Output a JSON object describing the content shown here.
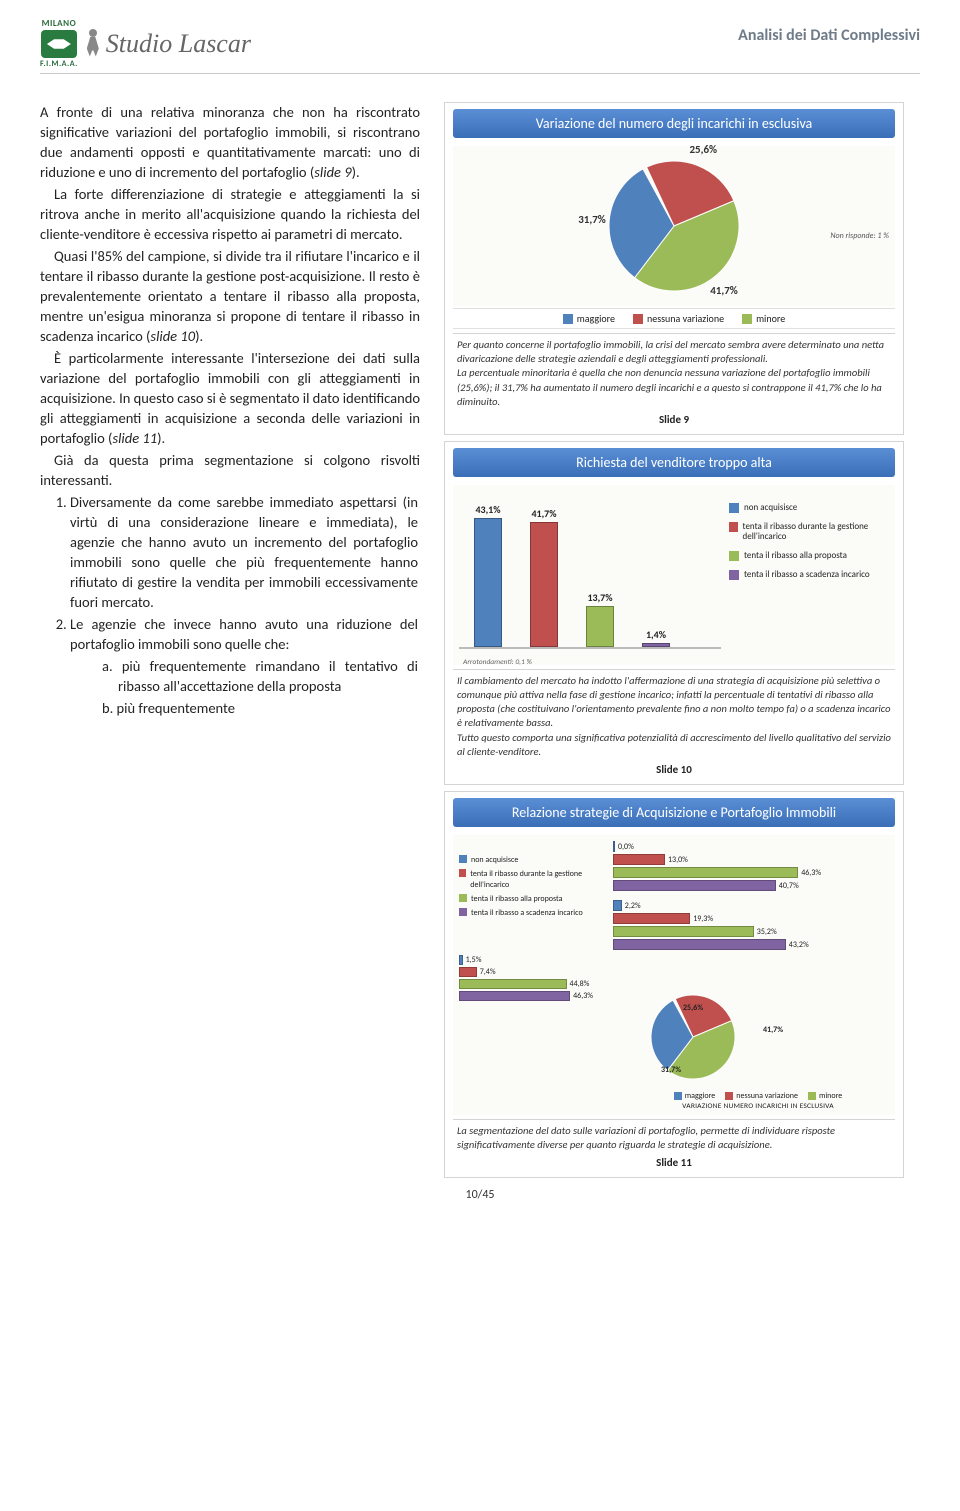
{
  "header": {
    "brand_top": "MILANO",
    "brand_bottom": "F.I.M.A.A.",
    "studio": "Studio Lascar",
    "page_section": "Analisi dei Dati Complessivi"
  },
  "body": {
    "p1": "A fronte di una relativa minoranza che non ha riscontrato significative variazioni del portafoglio immobili, si riscontrano due andamenti opposti e quantitativamente marcati: uno di riduzione e uno di incremento del portafoglio (",
    "p1_em": "slide 9",
    "p1_end": ").",
    "p2": "La forte differenziazione di strategie e atteggiamenti la si ritrova anche in merito all'acquisizione quando la richiesta del cliente-venditore è eccessiva rispetto ai parametri di mercato.",
    "p3": "Quasi l'85% del campione, si divide tra il rifiutare l'incarico e il tentare il ribasso durante la gestione post-acquisizione. Il resto è prevalentemente orientato a tentare il ribasso alla proposta, mentre un'esigua minoranza si propone di tentare il ribasso in scadenza incarico (",
    "p3_em": "slide 10",
    "p3_end": ").",
    "p4": "È particolarmente interessante l'intersezione dei dati sulla variazione del portafoglio immobili con gli atteggiamenti in acquisizione. In questo caso si è segmentato il dato identificando gli atteggiamenti in acquisizione a seconda delle variazioni in portafoglio (",
    "p4_em": "slide 11",
    "p4_end": ").",
    "p5": "Già da questa prima segmentazione si colgono risvolti interessanti.",
    "li1": "Diversamente da come sarebbe immediato aspettarsi (in virtù di una considerazione lineare e immediata), le agenzie che hanno avuto un incremento del portafoglio immobili sono quelle che più frequentemente hanno rifiutato di gestire la vendita per immobili eccessivamente fuori mercato.",
    "li2": "Le agenzie che invece hanno avuto una riduzione del portafoglio immobili sono quelle che:",
    "li2a": "a.  più frequentemente rimandano il tentativo di ribasso all'accettazione della proposta",
    "li2b": "b.  più frequentemente"
  },
  "slide9": {
    "title": "Variazione del numero degli incarichi in esclusiva",
    "caption": "Slide 9",
    "pie": {
      "slices": [
        {
          "label": "25,6%",
          "value": 25.6,
          "color": "#c0504d"
        },
        {
          "label": "41,7%",
          "value": 41.7,
          "color": "#9bbb59"
        },
        {
          "label": "31,7%",
          "value": 31.7,
          "color": "#4f81bd"
        }
      ],
      "note": "Non risponde: 1 %"
    },
    "legend": [
      {
        "color": "#4f81bd",
        "label": "maggiore"
      },
      {
        "color": "#c0504d",
        "label": "nessuna variazione"
      },
      {
        "color": "#9bbb59",
        "label": "minore"
      }
    ],
    "desc": "Per quanto concerne il portafoglio immobili, la crisi del mercato sembra avere determinato una netta divaricazione delle strategie aziendali e degli atteggiamenti professionali.\nLa percentuale minoritaria è quella che non denuncia nessuna variazione del portafoglio immobili (25,6%); il 31,7% ha aumentato il numero degli incarichi  e a questo si contrappone il 41,7% che lo ha diminuito."
  },
  "slide10": {
    "title": "Richiesta del venditore troppo alta",
    "caption": "Slide 10",
    "bars": [
      {
        "label": "43,1%",
        "value": 43.1,
        "color": "#4f81bd"
      },
      {
        "label": "41,7%",
        "value": 41.7,
        "color": "#c0504d"
      },
      {
        "label": "13,7%",
        "value": 13.7,
        "color": "#9bbb59"
      },
      {
        "label": "1,4%",
        "value": 1.4,
        "color": "#8064a2"
      }
    ],
    "ymax": 50,
    "legend": [
      {
        "color": "#4f81bd",
        "label": "non acquisisce"
      },
      {
        "color": "#c0504d",
        "label": "tenta il ribasso durante la gestione dell'incarico"
      },
      {
        "color": "#9bbb59",
        "label": "tenta il ribasso alla proposta"
      },
      {
        "color": "#8064a2",
        "label": "tenta il ribasso a scadenza incarico"
      }
    ],
    "note": "Arrotondamenti: 0,1 %",
    "desc": "Il cambiamento del mercato ha indotto l'affermazione di una strategia di acquisizione più selettiva o comunque più attiva nella fase di gestione incarico; infatti la percentuale di tentativi di ribasso alla proposta (che costituivano l'orientamento prevalente fino a non molto tempo fa) o a scadenza incarico è relativamente bassa.\nTutto questo comporta una significativa potenzialità di accrescimento del livello qualitativo del servizio al cliente-venditore."
  },
  "slide11": {
    "title": "Relazione strategie di Acquisizione e Portafoglio Immobili",
    "caption": "Slide 11",
    "legend_left": [
      {
        "color": "#4f81bd",
        "label": "non acquisisce"
      },
      {
        "color": "#c0504d",
        "label": "tenta il ribasso durante la gestione dell'incarico"
      },
      {
        "color": "#9bbb59",
        "label": "tenta il ribasso alla proposta"
      },
      {
        "color": "#8064a2",
        "label": "tenta il ribasso a scadenza incarico"
      }
    ],
    "groups": [
      {
        "bars": [
          {
            "v": 0.0,
            "c": "#4f81bd",
            "l": "0,0%"
          },
          {
            "v": 13.0,
            "c": "#c0504d",
            "l": "13,0%"
          },
          {
            "v": 46.3,
            "c": "#9bbb59",
            "l": "46,3%"
          },
          {
            "v": 40.7,
            "c": "#8064a2",
            "l": "40,7%"
          }
        ]
      },
      {
        "bars": [
          {
            "v": 2.2,
            "c": "#4f81bd",
            "l": "2,2%"
          },
          {
            "v": 19.3,
            "c": "#c0504d",
            "l": "19,3%"
          },
          {
            "v": 35.2,
            "c": "#9bbb59",
            "l": "35,2%"
          },
          {
            "v": 43.2,
            "c": "#8064a2",
            "l": "43,2%"
          }
        ]
      }
    ],
    "side_bars": [
      {
        "v": 1.5,
        "c": "#4f81bd",
        "l": "1,5%"
      },
      {
        "v": 7.4,
        "c": "#c0504d",
        "l": "7,4%"
      },
      {
        "v": 44.8,
        "c": "#9bbb59",
        "l": "44,8%"
      },
      {
        "v": 46.3,
        "c": "#8064a2",
        "l": "46,3%"
      }
    ],
    "mini_pie": [
      {
        "label": "25,6%",
        "value": 25.6,
        "color": "#c0504d"
      },
      {
        "label": "41,7%",
        "value": 41.7,
        "color": "#9bbb59"
      },
      {
        "label": "31,7%",
        "value": 31.7,
        "color": "#4f81bd"
      }
    ],
    "mini_legend": [
      {
        "color": "#4f81bd",
        "label": "maggiore"
      },
      {
        "color": "#c0504d",
        "label": "nessuna variazione"
      },
      {
        "color": "#9bbb59",
        "label": "minore"
      }
    ],
    "mini_caption": "VARIAZIONE NUMERO INCARICHI IN ESCLUSIVA",
    "desc": "La segmentazione del dato sulle variazioni di portafoglio, permette di individuare risposte significativamente diverse per quanto riguarda le strategie di acquisizione."
  },
  "footer": {
    "page": "10/45"
  },
  "colors": {
    "blue": "#4f81bd",
    "red": "#c0504d",
    "green": "#9bbb59",
    "purple": "#8064a2"
  }
}
